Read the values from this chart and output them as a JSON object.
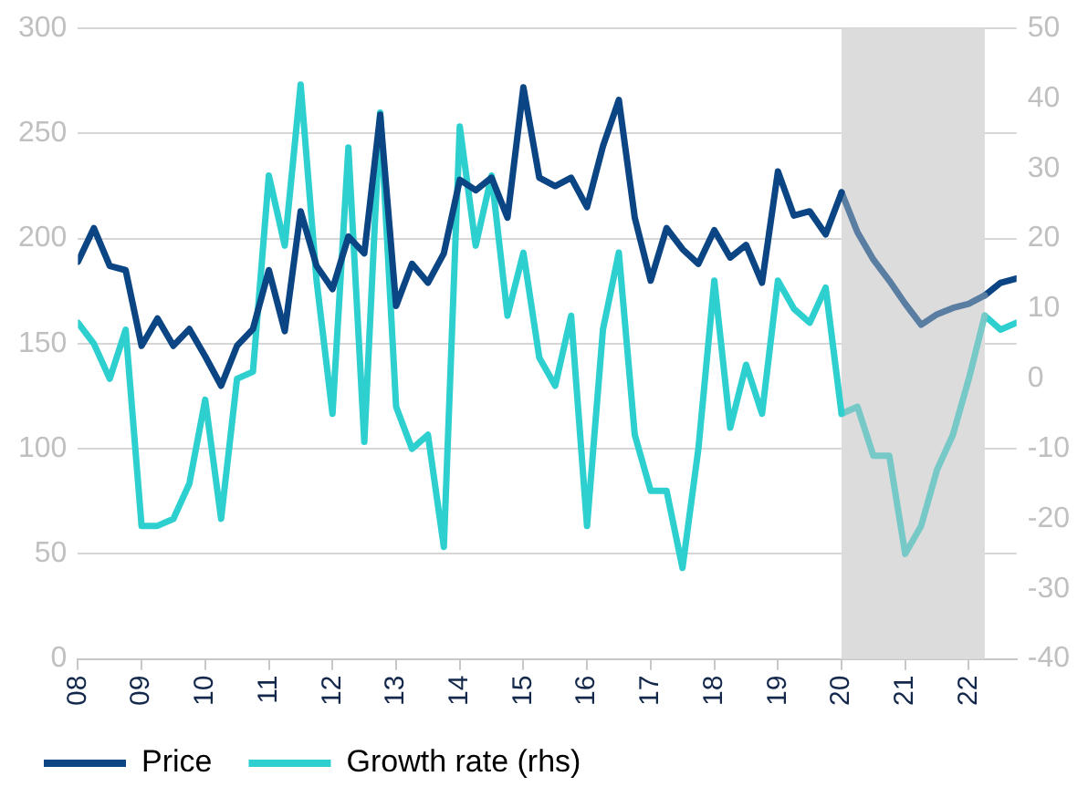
{
  "chart_data": {
    "type": "line",
    "xlim": [
      2008,
      2022.75
    ],
    "xticks": [
      {
        "value": 2008,
        "label": "08"
      },
      {
        "value": 2009,
        "label": "09"
      },
      {
        "value": 2010,
        "label": "10"
      },
      {
        "value": 2011,
        "label": "11"
      },
      {
        "value": 2012,
        "label": "12"
      },
      {
        "value": 2013,
        "label": "13"
      },
      {
        "value": 2014,
        "label": "14"
      },
      {
        "value": 2015,
        "label": "15"
      },
      {
        "value": 2016,
        "label": "16"
      },
      {
        "value": 2017,
        "label": "17"
      },
      {
        "value": 2018,
        "label": "18"
      },
      {
        "value": 2019,
        "label": "19"
      },
      {
        "value": 2020,
        "label": "20"
      },
      {
        "value": 2021,
        "label": "21"
      },
      {
        "value": 2022,
        "label": "22"
      }
    ],
    "ylim": [
      0,
      300
    ],
    "yticks": [
      0,
      50,
      100,
      150,
      200,
      250,
      300
    ],
    "y2lim": [
      -40,
      50
    ],
    "y2ticks": [
      -40,
      -30,
      -20,
      -10,
      0,
      10,
      20,
      30,
      40,
      50
    ],
    "grid": "y",
    "legend": "bottom left",
    "bands": [
      {
        "axis": "x",
        "from": 2020,
        "to": 2022.25,
        "color": "#dcdcdc"
      }
    ],
    "series": [
      {
        "name": "Price",
        "color": "#0b4583",
        "x": [
          2008,
          2008.25,
          2008.5,
          2008.75,
          2009,
          2009.25,
          2009.5,
          2009.75,
          2010,
          2010.25,
          2010.5,
          2010.75,
          2011,
          2011.25,
          2011.5,
          2011.75,
          2012,
          2012.25,
          2012.5,
          2012.75,
          2013,
          2013.25,
          2013.5,
          2013.75,
          2014,
          2014.25,
          2014.5,
          2014.75,
          2015,
          2015.25,
          2015.5,
          2015.75,
          2016,
          2016.25,
          2016.5,
          2016.75,
          2017,
          2017.25,
          2017.5,
          2017.75,
          2018,
          2018.25,
          2018.5,
          2018.75,
          2019,
          2019.25,
          2019.5,
          2019.75,
          2020
        ],
        "values": [
          189,
          205,
          187,
          185,
          149,
          162,
          149,
          157,
          144,
          130,
          149,
          157,
          185,
          156,
          213,
          187,
          176,
          201,
          193,
          259,
          168,
          188,
          179,
          193,
          228,
          223,
          229,
          210,
          272,
          229,
          225,
          229,
          215,
          244,
          266,
          210,
          180,
          205,
          195,
          188,
          204,
          191,
          197,
          179,
          232,
          211,
          213,
          202,
          222
        ]
      },
      {
        "name": "Growth rate (rhs)",
        "color": "#2ecfcf",
        "axis": "y2",
        "x": [
          2008,
          2008.25,
          2008.5,
          2008.75,
          2009,
          2009.25,
          2009.5,
          2009.75,
          2010,
          2010.25,
          2010.5,
          2010.75,
          2011,
          2011.25,
          2011.5,
          2011.75,
          2012,
          2012.25,
          2012.5,
          2012.75,
          2013,
          2013.25,
          2013.5,
          2013.75,
          2014,
          2014.25,
          2014.5,
          2014.75,
          2015,
          2015.25,
          2015.5,
          2015.75,
          2016,
          2016.25,
          2016.5,
          2016.75,
          2017,
          2017.25,
          2017.5,
          2017.75,
          2018,
          2018.25,
          2018.5,
          2018.75,
          2019,
          2019.25,
          2019.5,
          2019.75,
          2020
        ],
        "values": [
          8,
          5,
          0,
          7,
          -21,
          -21,
          -20,
          -15,
          -3,
          -20,
          0,
          1,
          29,
          19,
          42,
          14,
          -5,
          33,
          -9,
          38,
          -4,
          -10,
          -8,
          -24,
          36,
          19,
          29,
          9,
          18,
          3,
          -1,
          9,
          -21,
          7,
          18,
          -8,
          -16,
          -16,
          -27,
          -10,
          14,
          -7,
          2,
          -5,
          14,
          10,
          8,
          13,
          -5
        ]
      },
      {
        "color": "#5a7ea2",
        "x": [
          2020,
          2020.25,
          2020.5,
          2020.75,
          2021,
          2021.25,
          2021.5,
          2021.75,
          2022,
          2022.25
        ],
        "values": [
          222,
          203,
          190,
          180,
          169,
          159,
          164,
          167,
          169,
          173
        ]
      },
      {
        "color": "#76c9c7",
        "axis": "y2",
        "x": [
          2020,
          2020.25,
          2020.5,
          2020.75,
          2021,
          2021.25,
          2021.5,
          2021.75,
          2022,
          2022.25
        ],
        "values": [
          -5,
          -4,
          -11,
          -11,
          -25,
          -21,
          -13,
          -8,
          0,
          9
        ]
      },
      {
        "color": "#0b4583",
        "x": [
          2022.25,
          2022.5,
          2022.75
        ],
        "values": [
          173,
          179,
          181
        ]
      },
      {
        "color": "#2ecfcf",
        "axis": "y2",
        "x": [
          2022.25,
          2022.5,
          2022.75
        ],
        "values": [
          9,
          7,
          8
        ]
      }
    ]
  }
}
